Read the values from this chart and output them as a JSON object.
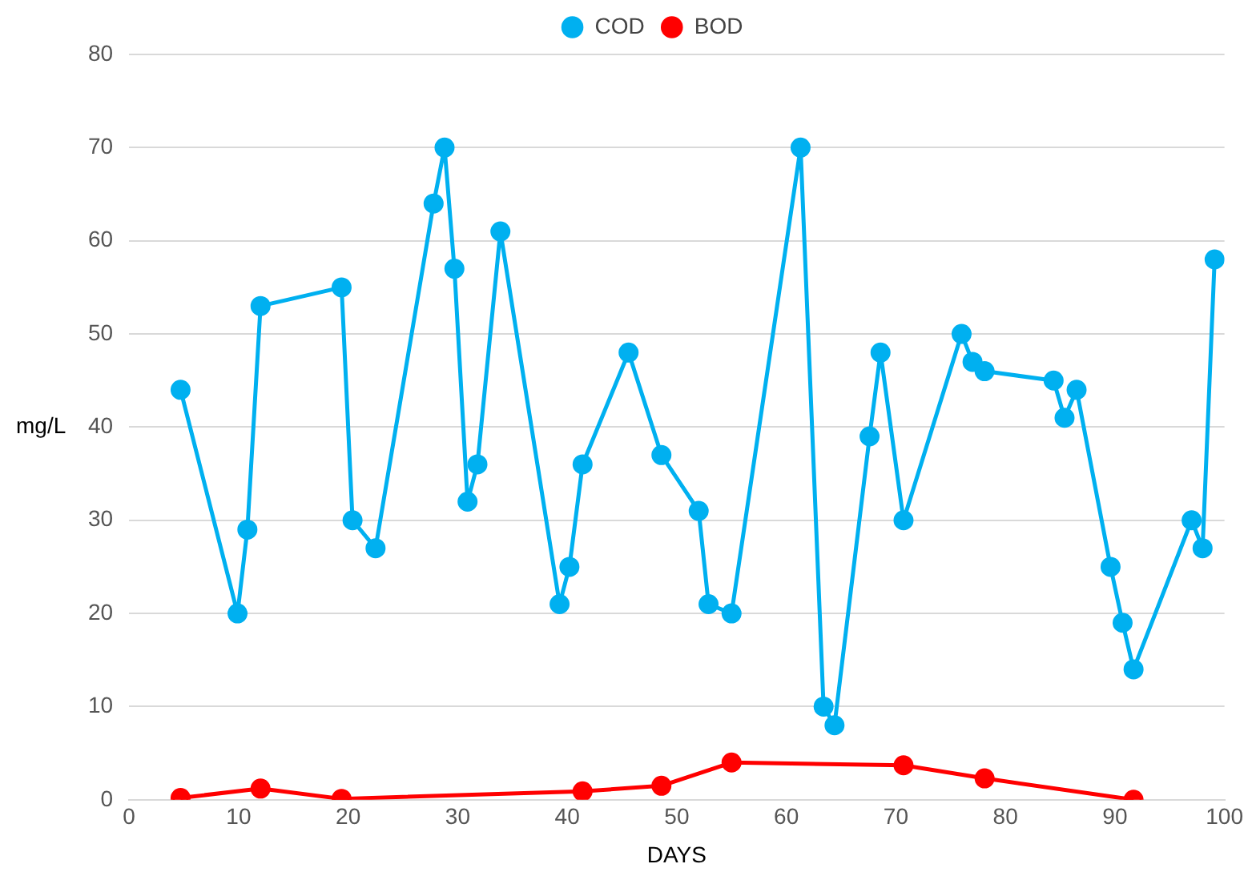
{
  "chart_data": {
    "type": "line",
    "xlabel": "DAYS",
    "ylabel": "mg/L",
    "xlim": [
      0,
      100
    ],
    "xticks": [
      0,
      10,
      20,
      30,
      40,
      50,
      60,
      70,
      80,
      90,
      100
    ],
    "ylim": [
      0,
      80
    ],
    "yticks": [
      0,
      10,
      20,
      30,
      40,
      50,
      60,
      70,
      80
    ],
    "grid": "y",
    "legend": "top",
    "marker": "circle",
    "line_style": "solid",
    "series": [
      {
        "name": "COD",
        "color": "#00b0f0",
        "x": [
          4.7,
          9.9,
          10.8,
          12,
          19.4,
          20.4,
          22.5,
          27.8,
          28.8,
          29.7,
          30.9,
          31.8,
          33.9,
          39.3,
          40.2,
          41.4,
          45.6,
          48.6,
          52,
          52.9,
          55,
          61.3,
          63.4,
          64.4,
          67.6,
          68.6,
          70.7,
          76,
          77,
          78.1,
          84.4,
          85.4,
          86.5,
          89.6,
          90.7,
          91.7,
          97,
          98,
          99.1
        ],
        "values": [
          44,
          20,
          29,
          53,
          55,
          30,
          27,
          64,
          70,
          57,
          32,
          36,
          61,
          21,
          25,
          36,
          48,
          37,
          31,
          21,
          20,
          70,
          10,
          8,
          39,
          48,
          30,
          50,
          47,
          46,
          45,
          41,
          44,
          25,
          19,
          14,
          30,
          27,
          58
        ]
      },
      {
        "name": "BOD",
        "color": "#ff0000",
        "x": [
          4.7,
          12,
          19.4,
          41.4,
          48.6,
          55,
          70.7,
          78.1,
          91.7
        ],
        "values": [
          0.2,
          1.2,
          0.1,
          0.9,
          1.5,
          4,
          3.7,
          2.3,
          0
        ]
      }
    ]
  }
}
